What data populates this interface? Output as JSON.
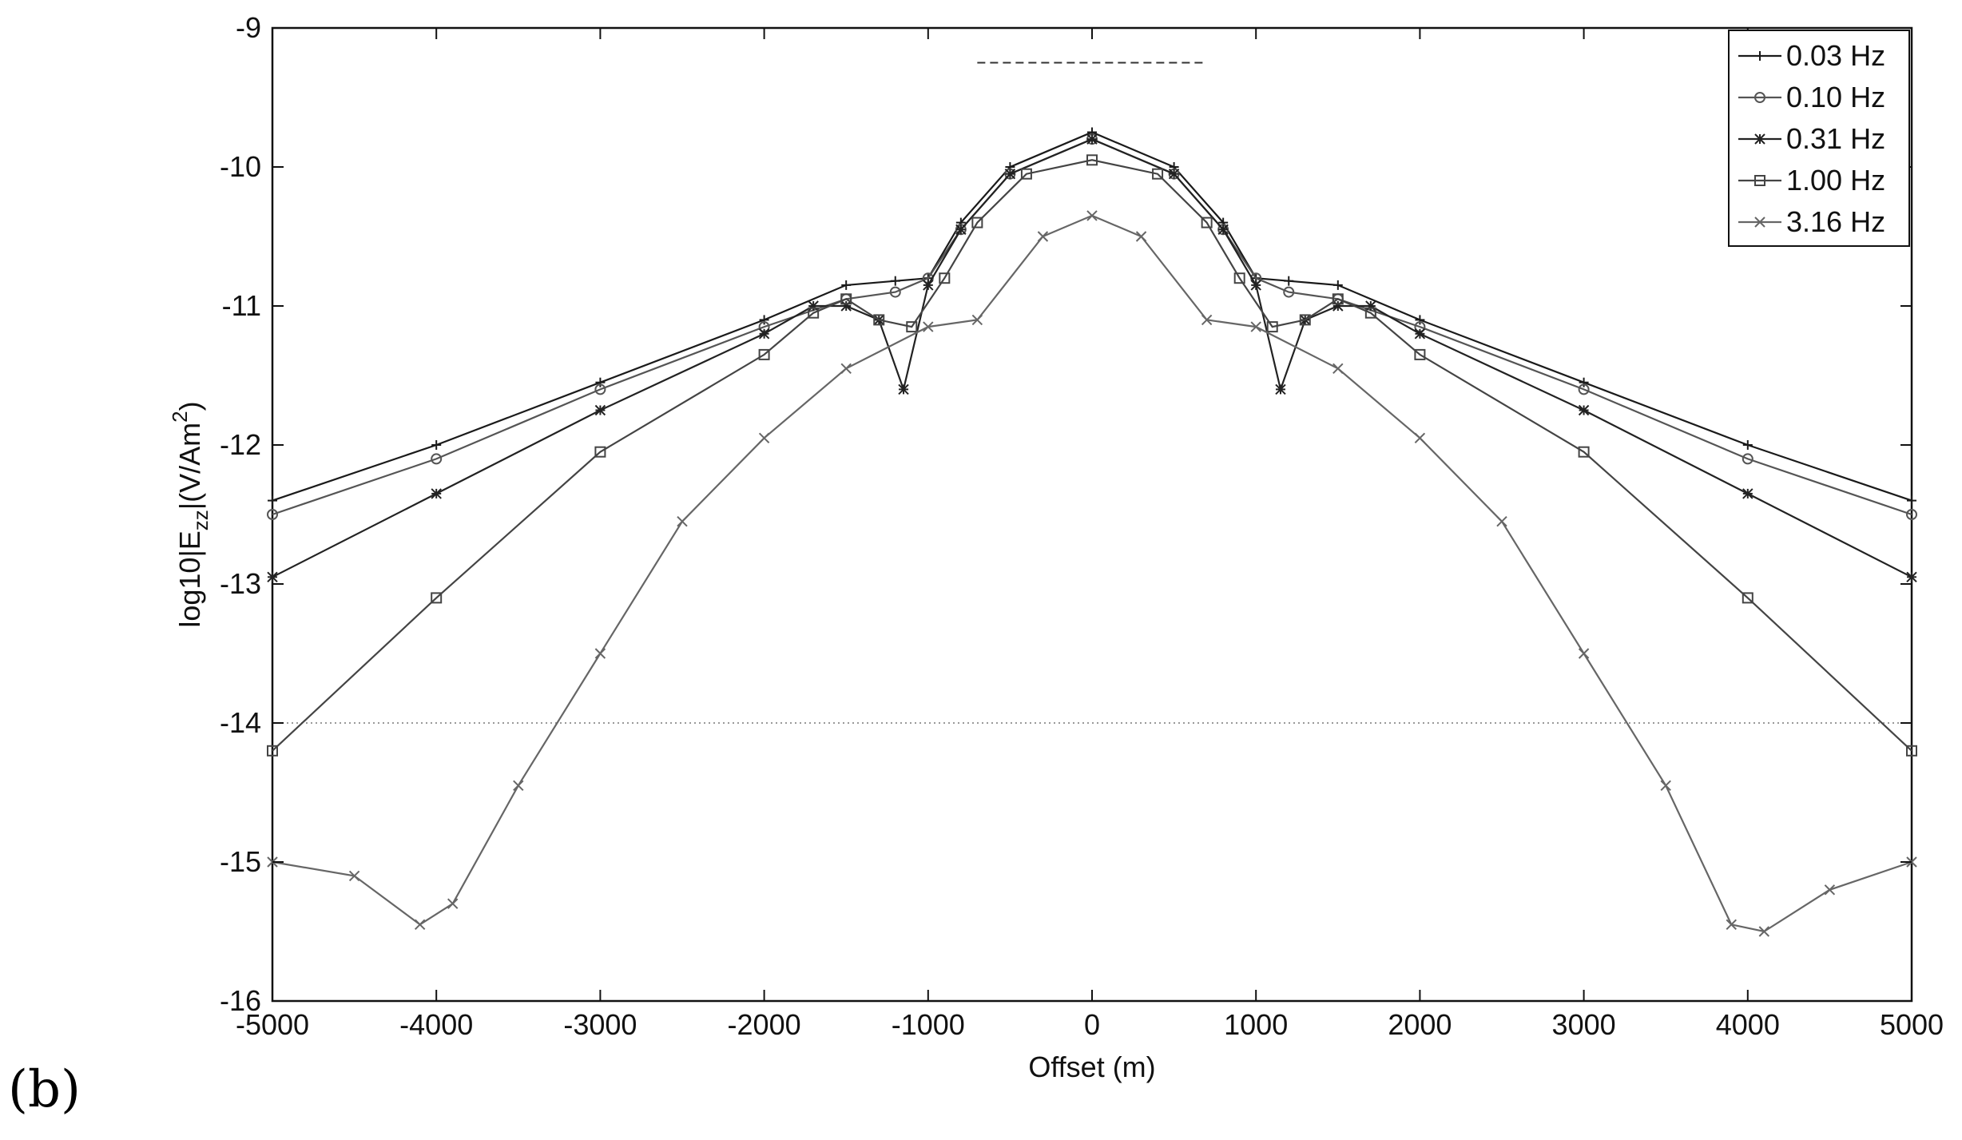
{
  "panel_label": "(b)",
  "chart_data": {
    "type": "line",
    "title": "",
    "xlabel": "Offset (m)",
    "ylabel": "log10|E_zz|(V/Am^2)",
    "ylabel_parts": {
      "pre": "log10|E",
      "sub": "zz",
      "mid": "|(V/Am",
      "sup": "2",
      "post": ")"
    },
    "xlim": [
      -5000,
      5000
    ],
    "ylim": [
      -16,
      -9
    ],
    "xticks": [
      -5000,
      -4000,
      -3000,
      -2000,
      -1000,
      0,
      1000,
      2000,
      3000,
      4000,
      5000
    ],
    "yticks": [
      -16,
      -15,
      -14,
      -13,
      -12,
      -11,
      -10,
      -9
    ],
    "grid": false,
    "legend_position": "top-right",
    "reference_lines": [
      {
        "style": "dashed",
        "y": -9.25,
        "x": [
          -700,
          700
        ]
      },
      {
        "style": "dotted",
        "y": -14.0,
        "x": [
          -5000,
          5000
        ]
      }
    ],
    "series": [
      {
        "name": "0.03 Hz",
        "marker": "plus",
        "color": "#1a1a1a",
        "x": [
          -5000,
          -4000,
          -3000,
          -2000,
          -1500,
          -1200,
          -1000,
          -800,
          -500,
          0,
          500,
          800,
          1000,
          1200,
          1500,
          2000,
          3000,
          4000,
          5000
        ],
        "y": [
          -12.4,
          -12.0,
          -11.55,
          -11.1,
          -10.85,
          -10.82,
          -10.8,
          -10.4,
          -10.0,
          -9.75,
          -10.0,
          -10.4,
          -10.8,
          -10.82,
          -10.85,
          -11.1,
          -11.55,
          -12.0,
          -12.4
        ]
      },
      {
        "name": "0.10 Hz",
        "marker": "circle",
        "color": "#555555",
        "x": [
          -5000,
          -4000,
          -3000,
          -2000,
          -1500,
          -1200,
          -1000,
          -800,
          -500,
          0,
          500,
          800,
          1000,
          1200,
          1500,
          2000,
          3000,
          4000,
          5000
        ],
        "y": [
          -12.5,
          -12.1,
          -11.6,
          -11.15,
          -10.95,
          -10.9,
          -10.8,
          -10.45,
          -10.05,
          -9.8,
          -10.05,
          -10.45,
          -10.8,
          -10.9,
          -10.95,
          -11.15,
          -11.6,
          -12.1,
          -12.5
        ]
      },
      {
        "name": "0.31 Hz",
        "marker": "star",
        "color": "#222222",
        "x": [
          -5000,
          -4000,
          -3000,
          -2000,
          -1700,
          -1500,
          -1300,
          -1150,
          -1000,
          -800,
          -500,
          0,
          500,
          800,
          1000,
          1150,
          1300,
          1500,
          1700,
          2000,
          3000,
          4000,
          5000
        ],
        "y": [
          -12.95,
          -12.35,
          -11.75,
          -11.2,
          -11.0,
          -11.0,
          -11.1,
          -11.6,
          -10.85,
          -10.45,
          -10.05,
          -9.8,
          -10.05,
          -10.45,
          -10.85,
          -11.6,
          -11.1,
          -11.0,
          -11.0,
          -11.2,
          -11.75,
          -12.35,
          -12.95
        ]
      },
      {
        "name": "1.00 Hz",
        "marker": "square",
        "color": "#444444",
        "x": [
          -5000,
          -4000,
          -3000,
          -2000,
          -1700,
          -1500,
          -1300,
          -1100,
          -900,
          -700,
          -400,
          0,
          400,
          700,
          900,
          1100,
          1300,
          1500,
          1700,
          2000,
          3000,
          4000,
          5000
        ],
        "y": [
          -14.2,
          -13.1,
          -12.05,
          -11.35,
          -11.05,
          -10.95,
          -11.1,
          -11.15,
          -10.8,
          -10.4,
          -10.05,
          -9.95,
          -10.05,
          -10.4,
          -10.8,
          -11.15,
          -11.1,
          -10.95,
          -11.05,
          -11.35,
          -12.05,
          -13.1,
          -14.2
        ]
      },
      {
        "name": "3.16 Hz",
        "marker": "cross",
        "color": "#666666",
        "x": [
          -5000,
          -4500,
          -4100,
          -3900,
          -3500,
          -3000,
          -2500,
          -2000,
          -1500,
          -1000,
          -700,
          -300,
          0,
          300,
          700,
          1000,
          1500,
          2000,
          2500,
          3000,
          3500,
          3900,
          4100,
          4500,
          5000
        ],
        "y": [
          -15.0,
          -15.1,
          -15.45,
          -15.3,
          -14.45,
          -13.5,
          -12.55,
          -11.95,
          -11.45,
          -11.15,
          -11.1,
          -10.5,
          -10.35,
          -10.5,
          -11.1,
          -11.15,
          -11.45,
          -11.95,
          -12.55,
          -13.5,
          -14.45,
          -15.45,
          -15.5,
          -15.2,
          -15.0
        ]
      }
    ]
  }
}
